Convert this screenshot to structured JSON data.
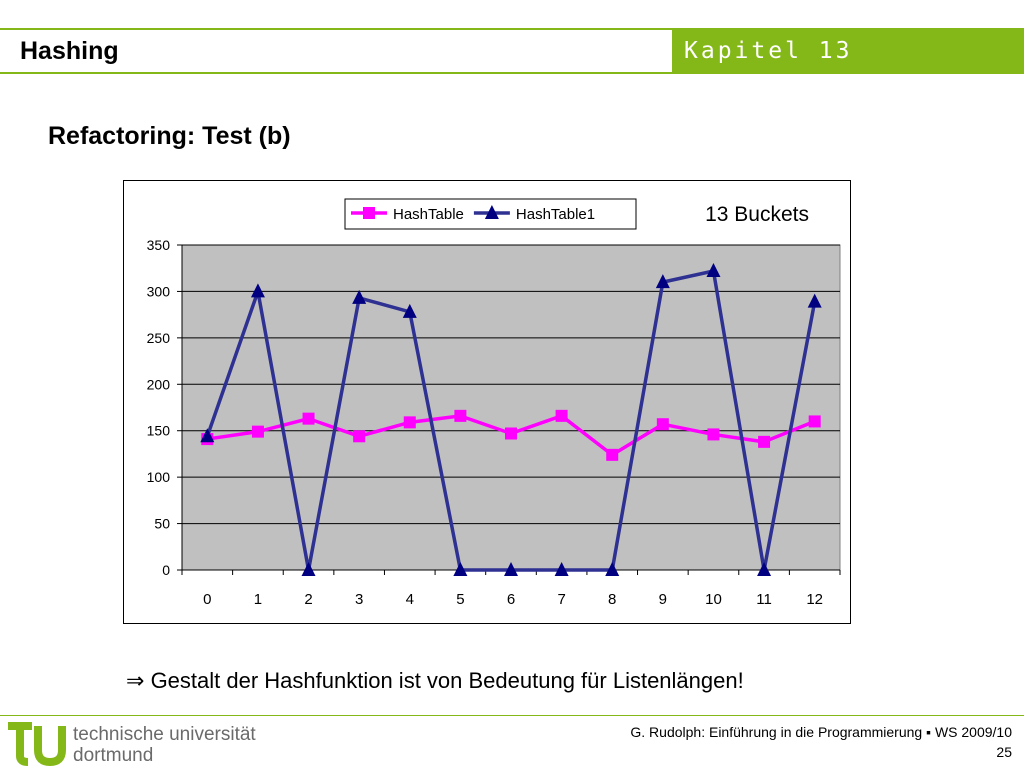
{
  "header": {
    "title": "Hashing",
    "chapter": "Kapitel 13"
  },
  "slide": {
    "subtitle": "Refactoring: Test (b)",
    "bullet_symbol": "⇒",
    "bullet_text": "Gestalt der Hashfunktion ist von Bedeutung für Listenlängen!"
  },
  "footer": {
    "logo_line1": "technische universität",
    "logo_line2": "dortmund",
    "course": "G. Rudolph: Einführung in die Programmierung ▪ WS 2009/10",
    "page": "25"
  },
  "colors": {
    "accent": "#84b818",
    "plot_bg": "#c0c0c0",
    "hashtable": "#ff00ff",
    "hashtable1": "#2e3192"
  },
  "chart_data": {
    "type": "line",
    "annotation": "13 Buckets",
    "x": [
      "0",
      "1",
      "2",
      "3",
      "4",
      "5",
      "6",
      "7",
      "8",
      "9",
      "10",
      "11",
      "12"
    ],
    "ylim": [
      0,
      350
    ],
    "yticks": [
      0,
      50,
      100,
      150,
      200,
      250,
      300,
      350
    ],
    "grid": true,
    "legend_position": "top",
    "series": [
      {
        "name": "HashTable",
        "marker": "square",
        "color": "#ff00ff",
        "values": [
          141,
          149,
          163,
          144,
          159,
          166,
          147,
          166,
          124,
          157,
          146,
          138,
          160
        ]
      },
      {
        "name": "HashTable1",
        "marker": "triangle",
        "color": "#2e3192",
        "values": [
          144,
          300,
          0,
          293,
          278,
          0,
          0,
          0,
          0,
          310,
          322,
          0,
          289
        ]
      }
    ]
  }
}
